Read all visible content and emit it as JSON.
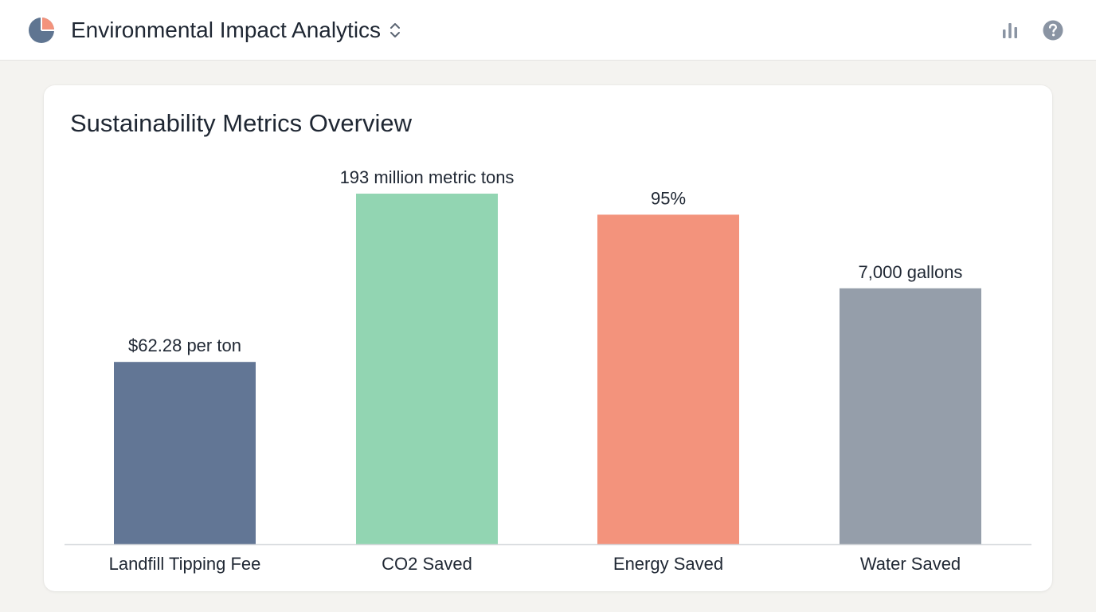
{
  "header": {
    "title": "Environmental Impact Analytics",
    "logo_icon": "pie-chart-icon",
    "switcher_icon": "chevron-up-down-icon",
    "actions": [
      {
        "icon": "bar-chart-icon"
      },
      {
        "icon": "help-circle-icon"
      }
    ]
  },
  "card": {
    "title": "Sustainability Metrics Overview"
  },
  "chart_data": {
    "type": "bar",
    "title": "Sustainability Metrics Overview",
    "categories": [
      "Landfill Tipping Fee",
      "CO2 Saved",
      "Energy Saved",
      "Water Saved"
    ],
    "value_labels": [
      "$62.28 per ton",
      "193 million metric tons",
      "95%",
      "7,000 gallons"
    ],
    "bar_heights_relative": [
      0.52,
      1.0,
      0.94,
      0.73
    ],
    "colors": [
      "#627695",
      "#92d5b2",
      "#f3937c",
      "#959eaa"
    ],
    "axis_color": "#d5d8dc",
    "grid": false,
    "xlabel": "",
    "ylabel": ""
  },
  "colors": {
    "background": "#f4f3f0",
    "card": "#ffffff",
    "text": "#1f2733",
    "icon_gray": "#8a94a3",
    "logo_blue": "#5f7591",
    "logo_coral": "#f3937c"
  }
}
